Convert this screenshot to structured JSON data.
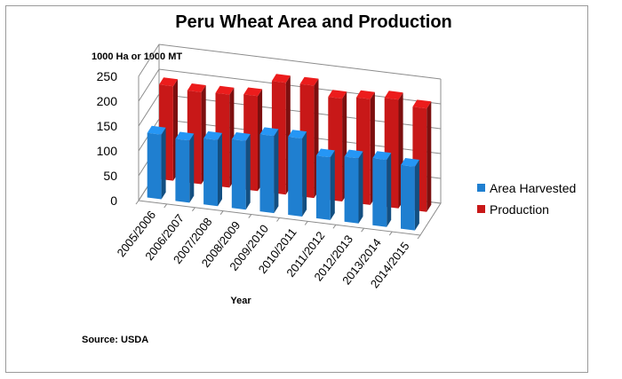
{
  "chart_data": {
    "type": "bar",
    "title": "Peru Wheat Area and Production",
    "ylabel": "1000 Ha or 1000 MT",
    "xlabel": "Year",
    "source": "Source:  USDA",
    "ylim": [
      0,
      250
    ],
    "yticks": [
      0,
      50,
      100,
      150,
      200,
      250
    ],
    "categories": [
      "2005/2006",
      "2006/2007",
      "2007/2008",
      "2008/2009",
      "2009/2010",
      "2010/2011",
      "2011/2012",
      "2012/2013",
      "2013/2014",
      "2014/2015"
    ],
    "series": [
      {
        "name": "Area Harvested",
        "color": "#1f7fd0",
        "values": [
          130,
          125,
          133,
          138,
          155,
          157,
          126,
          131,
          135,
          128
        ]
      },
      {
        "name": "Production",
        "color": "#c81818",
        "values": [
          190,
          185,
          187,
          191,
          225,
          226,
          207,
          213,
          219,
          208
        ]
      }
    ],
    "legend_position": "right",
    "grid": true,
    "style": "3d-clustered"
  }
}
